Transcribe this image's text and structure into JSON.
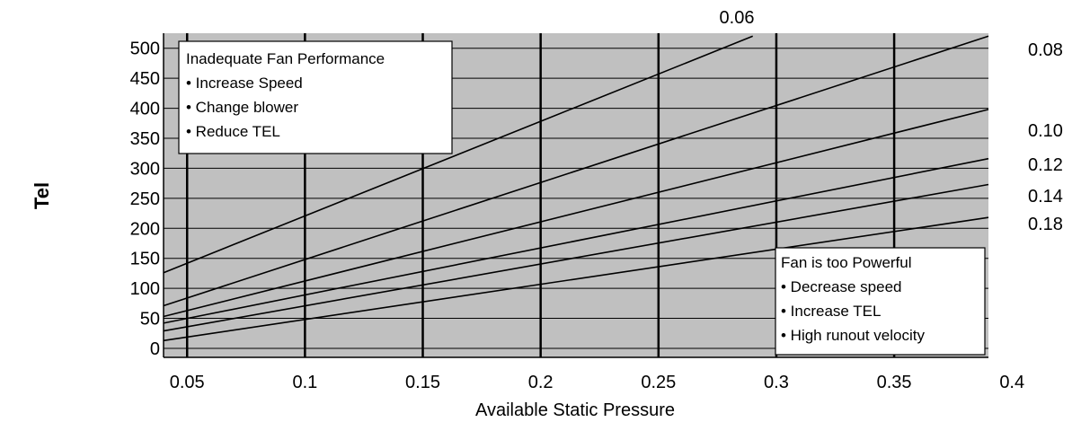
{
  "chart_data": {
    "type": "line",
    "title": "",
    "xlabel": "Available Static Pressure",
    "ylabel": "Tel",
    "xlim": [
      0.04,
      0.39
    ],
    "ylim": [
      -15,
      525
    ],
    "x_ticks": [
      "0.05",
      "0.1",
      "0.15",
      "0.2",
      "0.25",
      "0.3",
      "0.35",
      "0.4"
    ],
    "y_ticks": [
      "500",
      "450",
      "400",
      "350",
      "300",
      "250",
      "200",
      "150",
      "100",
      "50",
      "0"
    ],
    "grid": true,
    "background_color": "#c0c0c0",
    "line_color": "#000000",
    "series": [
      {
        "name": "0.06",
        "points": [
          [
            0.04,
            126
          ],
          [
            0.29,
            520
          ]
        ]
      },
      {
        "name": "0.08",
        "points": [
          [
            0.04,
            71
          ],
          [
            0.39,
            520
          ]
        ]
      },
      {
        "name": "0.10",
        "points": [
          [
            0.04,
            53
          ],
          [
            0.39,
            398
          ]
        ]
      },
      {
        "name": "0.12",
        "points": [
          [
            0.04,
            42
          ],
          [
            0.39,
            316
          ]
        ]
      },
      {
        "name": "0.14",
        "points": [
          [
            0.04,
            29
          ],
          [
            0.39,
            273
          ]
        ]
      },
      {
        "name": "0.18",
        "points": [
          [
            0.04,
            13
          ],
          [
            0.39,
            218
          ]
        ]
      }
    ],
    "annotations": [
      {
        "title": "Inadequate Fan Performance",
        "items": [
          "• Increase Speed",
          "• Change blower",
          "• Reduce TEL"
        ]
      },
      {
        "title": "Fan is too Powerful",
        "items": [
          "• Decrease speed",
          "• Increase TEL",
          "• High runout velocity"
        ]
      }
    ]
  }
}
